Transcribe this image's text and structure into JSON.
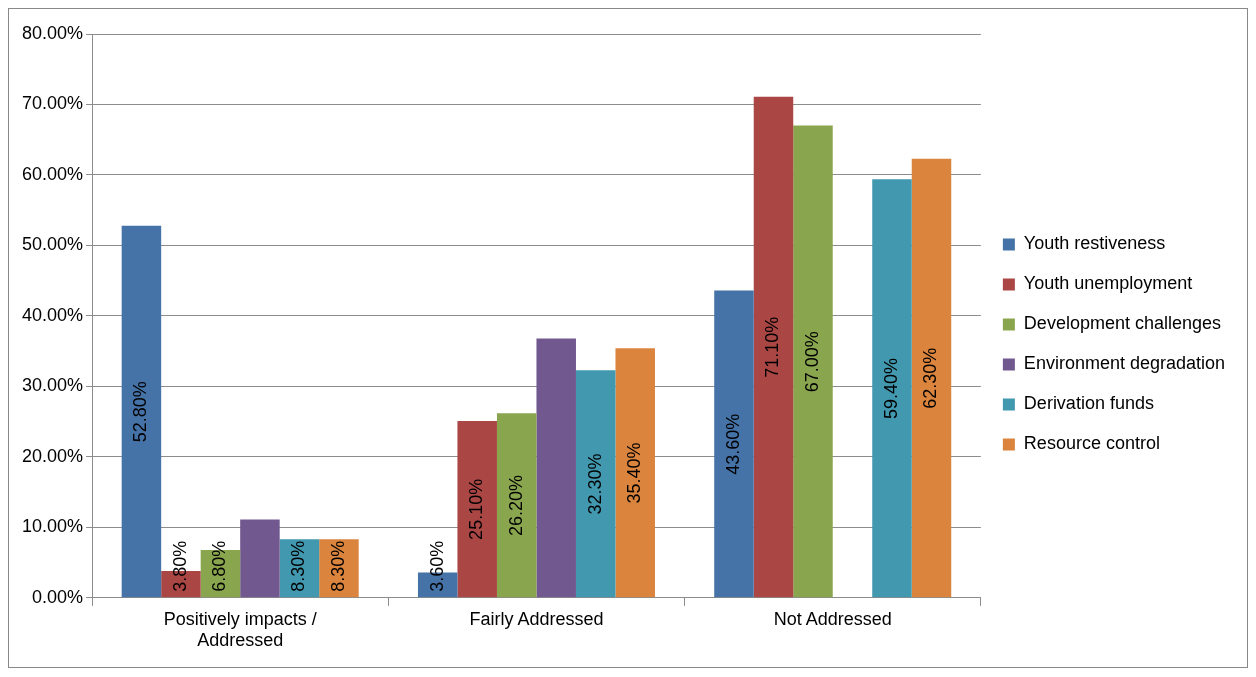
{
  "chart_data": {
    "type": "bar",
    "categories": [
      "Positively impacts / Addressed",
      "Fairly Addressed",
      "Not Addressed"
    ],
    "series": [
      {
        "name": "Youth restiveness",
        "color": "#4572a7",
        "values": [
          52.8,
          3.6,
          43.6
        ],
        "value_labels": [
          "52.80%",
          "3.60%",
          "43.60%"
        ]
      },
      {
        "name": "Youth unemployment",
        "color": "#aa4643",
        "values": [
          3.8,
          25.1,
          71.1
        ],
        "value_labels": [
          "3.80%",
          "25.10%",
          "71.10%"
        ]
      },
      {
        "name": "Development challenges",
        "color": "#89a54e",
        "values": [
          6.8,
          26.2,
          67.0
        ],
        "value_labels": [
          "6.80%",
          "26.20%",
          "67.00%"
        ]
      },
      {
        "name": "Environment degradation",
        "color": "#71588f",
        "values": [
          11.1,
          36.8,
          null
        ]
      },
      {
        "name": "Derivation funds",
        "color": "#4198af",
        "values": [
          8.3,
          32.3,
          59.4
        ],
        "value_labels": [
          "8.30%",
          "32.30%",
          "59.40%"
        ]
      },
      {
        "name": "Resource control",
        "color": "#db843d",
        "values": [
          8.3,
          35.4,
          62.3
        ],
        "value_labels": [
          "8.30%",
          "35.40%",
          "62.30%"
        ]
      }
    ],
    "ylim": [
      0,
      80
    ],
    "yticks": [
      {
        "value": 0,
        "label": "0.00%"
      },
      {
        "value": 10,
        "label": "10.00%"
      },
      {
        "value": 20,
        "label": "20.00%"
      },
      {
        "value": 30,
        "label": "30.00%"
      },
      {
        "value": 40,
        "label": "40.00%"
      },
      {
        "value": 50,
        "label": "50.00%"
      },
      {
        "value": 60,
        "label": "60.00%"
      },
      {
        "value": 70,
        "label": "70.00%"
      },
      {
        "value": 80,
        "label": "80.00%"
      }
    ],
    "grid": "y",
    "legend": "right"
  }
}
